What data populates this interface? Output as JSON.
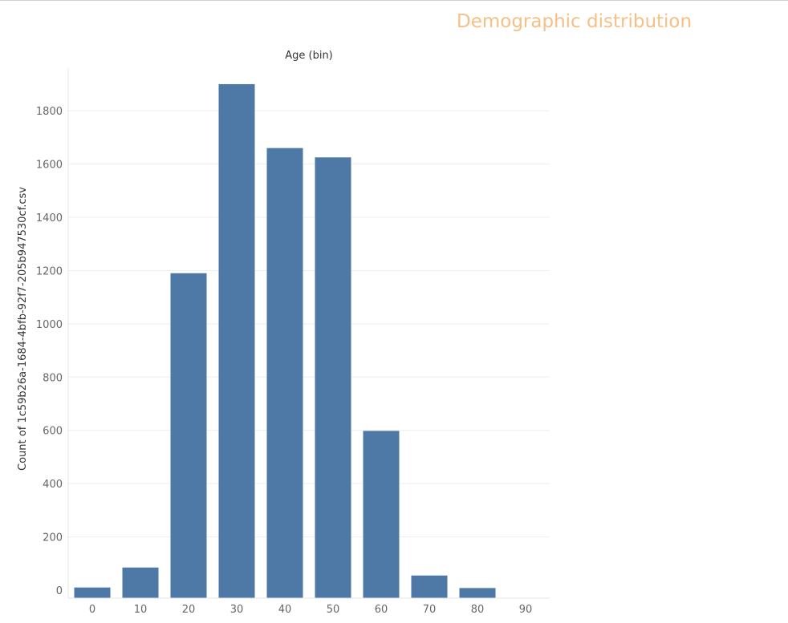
{
  "title": "Demographic distribution",
  "chart_data": {
    "type": "bar",
    "title": "Demographic distribution",
    "xlabel": "Age (bin)",
    "ylabel": "Count of 1c59b26a-1684-4bfb-92f7-205b947530cf.csv",
    "categories": [
      "0",
      "10",
      "20",
      "30",
      "40",
      "50",
      "60",
      "70",
      "80",
      "90"
    ],
    "values": [
      10,
      85,
      1190,
      1900,
      1660,
      1625,
      598,
      55,
      8,
      0
    ],
    "y_ticks": [
      0,
      200,
      400,
      600,
      800,
      1000,
      1200,
      1400,
      1600,
      1800
    ],
    "ylim": [
      -30,
      1960
    ],
    "grid": true,
    "bar_color": "#4e79a7",
    "grid_color": "#eeeeee",
    "title_color": "#f6bf86"
  }
}
